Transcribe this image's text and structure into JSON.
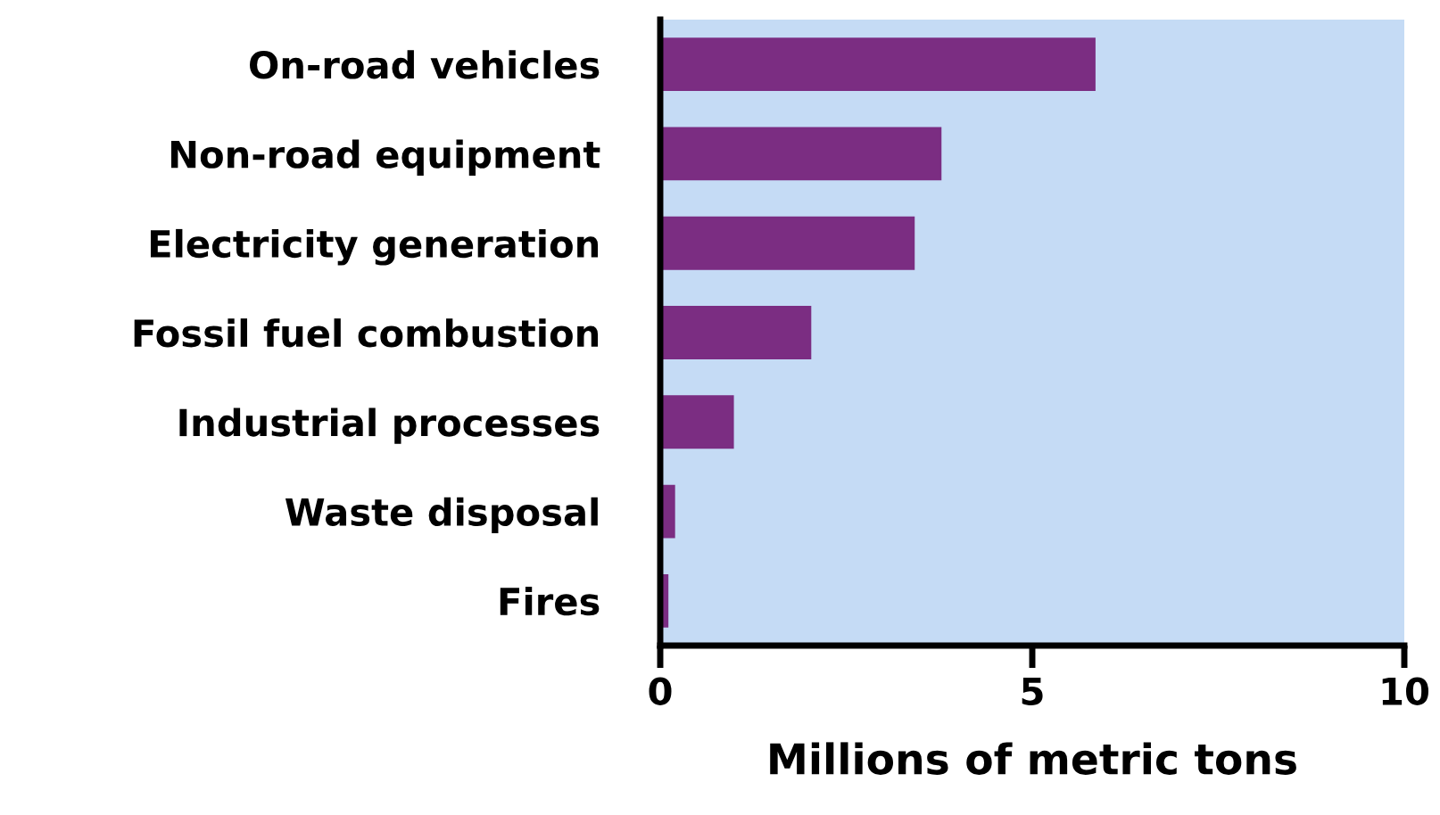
{
  "chart_data": {
    "type": "bar",
    "orientation": "horizontal",
    "xlabel": "Millions of metric tons",
    "categories": [
      "On-road vehicles",
      "Non-road equipment",
      "Electricity generation",
      "Fossil fuel combustion",
      "Industrial processes",
      "Waste disposal",
      "Fires"
    ],
    "values": [
      5.84,
      3.77,
      3.41,
      2.02,
      0.98,
      0.19,
      0.1
    ],
    "color": "#7b2d82",
    "xlim": [
      0,
      10
    ],
    "xticks": [
      0,
      5,
      10
    ],
    "grid": false,
    "legend": false
  }
}
